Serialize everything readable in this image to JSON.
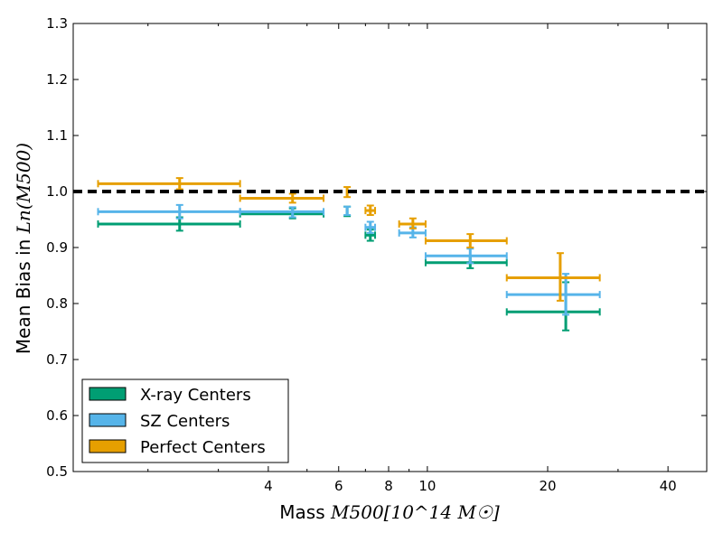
{
  "chart_data": {
    "type": "scatter",
    "title": "",
    "xlabel": {
      "prefix": "Mass ",
      "math": "M500[10^14 M☉]"
    },
    "ylabel": {
      "prefix": "Mean Bias in ",
      "math": "Ln(M500)"
    },
    "x_scale": "log",
    "xlim": [
      1.3,
      50
    ],
    "ylim": [
      0.5,
      1.3
    ],
    "x_ticks": [
      4,
      6,
      8,
      10,
      20,
      40
    ],
    "y_ticks": [
      0.5,
      0.6,
      0.7,
      0.8,
      0.9,
      1.0,
      1.1,
      1.2,
      1.3
    ],
    "reference_line": {
      "y": 1.0,
      "style": "dashed",
      "color": "#000000"
    },
    "legend": {
      "position": "lower-left"
    },
    "series": [
      {
        "name": "X-ray Centers",
        "color": "#009E73",
        "points": [
          {
            "x": 2.4,
            "xlo": 1.5,
            "xhi": 3.4,
            "y": 0.942,
            "ylo": 0.93,
            "yhi": 0.954
          },
          {
            "x": 4.6,
            "xlo": 3.4,
            "xhi": 5.5,
            "y": 0.96,
            "ylo": 0.952,
            "yhi": 0.97
          },
          {
            "x": 6.3,
            "xlo": 6.3,
            "xhi": 6.3,
            "y": 0.963,
            "ylo": 0.956,
            "yhi": 0.973
          },
          {
            "x": 7.2,
            "xlo": 7.0,
            "xhi": 7.4,
            "y": 0.922,
            "ylo": 0.912,
            "yhi": 0.932
          },
          {
            "x": 12.8,
            "xlo": 9.9,
            "xhi": 15.8,
            "y": 0.873,
            "ylo": 0.863,
            "yhi": 0.885
          },
          {
            "x": 22.2,
            "xlo": 15.8,
            "xhi": 27.0,
            "y": 0.785,
            "ylo": 0.752,
            "yhi": 0.838
          }
        ]
      },
      {
        "name": "SZ Centers",
        "color": "#56B4E9",
        "points": [
          {
            "x": 2.4,
            "xlo": 1.5,
            "xhi": 3.4,
            "y": 0.964,
            "ylo": 0.952,
            "yhi": 0.976
          },
          {
            "x": 4.6,
            "xlo": 3.4,
            "xhi": 5.5,
            "y": 0.964,
            "ylo": 0.954,
            "yhi": 0.972
          },
          {
            "x": 6.3,
            "xlo": 6.3,
            "xhi": 6.3,
            "y": 0.965,
            "ylo": 0.958,
            "yhi": 0.973
          },
          {
            "x": 7.2,
            "xlo": 7.0,
            "xhi": 7.4,
            "y": 0.936,
            "ylo": 0.926,
            "yhi": 0.946
          },
          {
            "x": 9.2,
            "xlo": 8.5,
            "xhi": 9.9,
            "y": 0.926,
            "ylo": 0.918,
            "yhi": 0.936
          },
          {
            "x": 12.8,
            "xlo": 9.9,
            "xhi": 15.8,
            "y": 0.885,
            "ylo": 0.872,
            "yhi": 0.898
          },
          {
            "x": 22.2,
            "xlo": 15.8,
            "xhi": 27.0,
            "y": 0.816,
            "ylo": 0.78,
            "yhi": 0.853
          }
        ]
      },
      {
        "name": "Perfect Centers",
        "color": "#E69F00",
        "points": [
          {
            "x": 2.4,
            "xlo": 1.5,
            "xhi": 3.4,
            "y": 1.014,
            "ylo": 1.004,
            "yhi": 1.024
          },
          {
            "x": 4.6,
            "xlo": 3.4,
            "xhi": 5.5,
            "y": 0.988,
            "ylo": 0.98,
            "yhi": 0.996
          },
          {
            "x": 6.3,
            "xlo": 6.3,
            "xhi": 6.3,
            "y": 0.998,
            "ylo": 0.99,
            "yhi": 1.008
          },
          {
            "x": 7.2,
            "xlo": 7.0,
            "xhi": 7.4,
            "y": 0.966,
            "ylo": 0.958,
            "yhi": 0.975
          },
          {
            "x": 9.2,
            "xlo": 8.5,
            "xhi": 9.9,
            "y": 0.942,
            "ylo": 0.934,
            "yhi": 0.952
          },
          {
            "x": 12.8,
            "xlo": 9.9,
            "xhi": 15.8,
            "y": 0.912,
            "ylo": 0.9,
            "yhi": 0.924
          },
          {
            "x": 21.5,
            "xlo": 15.8,
            "xhi": 27.0,
            "y": 0.846,
            "ylo": 0.805,
            "yhi": 0.89
          }
        ]
      }
    ]
  }
}
